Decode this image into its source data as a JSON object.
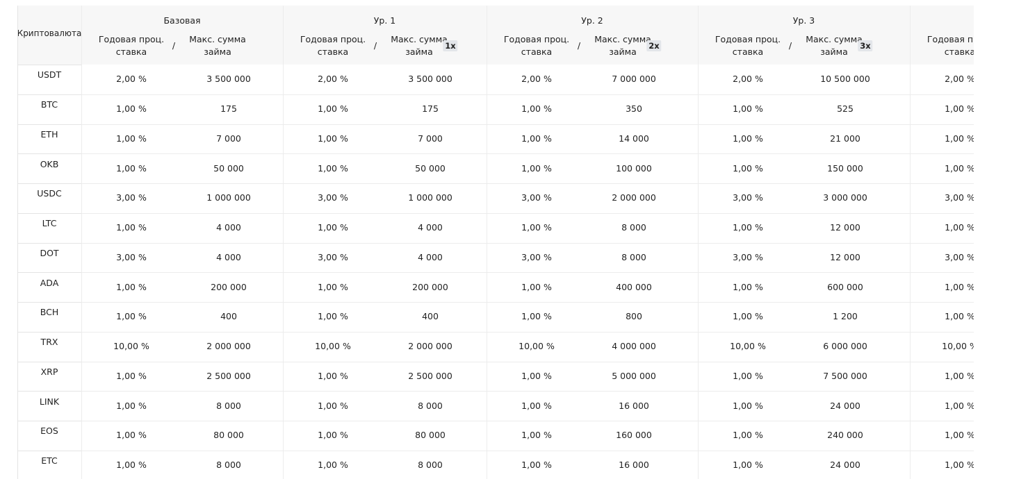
{
  "table": {
    "corner": "Криптовалюта",
    "groups": [
      {
        "name": "Базовая",
        "rate_header": [
          "Годовая проц.",
          "ставка"
        ],
        "separator": "/",
        "amount_header": [
          "Макс. сумма",
          "займа"
        ]
      },
      {
        "name": "Ур. 1",
        "rate_header": [
          "Годовая проц.",
          "ставка"
        ],
        "separator": "/",
        "amount_header": [
          "Макс. сумма",
          "займа"
        ],
        "multiplier": "1x"
      },
      {
        "name": "Ур. 2",
        "rate_header": [
          "Годовая проц.",
          "ставка"
        ],
        "separator": "/",
        "amount_header": [
          "Макс. сумма",
          "займа"
        ],
        "multiplier": "2x"
      },
      {
        "name": "Ур. 3",
        "rate_header": [
          "Годовая проц.",
          "ставка"
        ],
        "separator": "/",
        "amount_header": [
          "Макс. сумма",
          "займа"
        ],
        "multiplier": "3x"
      },
      {
        "rate_header": [
          "Годовая проц.",
          "ставка"
        ]
      }
    ],
    "rows": [
      {
        "currency": "USDT",
        "cells": [
          "2,00 %",
          "3 500 000",
          "2,00 %",
          "3 500 000",
          "2,00 %",
          "7 000 000",
          "2,00 %",
          "10 500 000",
          "2,00 %"
        ]
      },
      {
        "currency": "BTC",
        "cells": [
          "1,00 %",
          "175",
          "1,00 %",
          "175",
          "1,00 %",
          "350",
          "1,00 %",
          "525",
          "1,00 %"
        ]
      },
      {
        "currency": "ETH",
        "cells": [
          "1,00 %",
          "7 000",
          "1,00 %",
          "7 000",
          "1,00 %",
          "14 000",
          "1,00 %",
          "21 000",
          "1,00 %"
        ]
      },
      {
        "currency": "OKB",
        "cells": [
          "1,00 %",
          "50 000",
          "1,00 %",
          "50 000",
          "1,00 %",
          "100 000",
          "1,00 %",
          "150 000",
          "1,00 %"
        ]
      },
      {
        "currency": "USDC",
        "cells": [
          "3,00 %",
          "1 000 000",
          "3,00 %",
          "1 000 000",
          "3,00 %",
          "2 000 000",
          "3,00 %",
          "3 000 000",
          "3,00 %"
        ]
      },
      {
        "currency": "LTC",
        "cells": [
          "1,00 %",
          "4 000",
          "1,00 %",
          "4 000",
          "1,00 %",
          "8 000",
          "1,00 %",
          "12 000",
          "1,00 %"
        ]
      },
      {
        "currency": "DOT",
        "cells": [
          "3,00 %",
          "4 000",
          "3,00 %",
          "4 000",
          "3,00 %",
          "8 000",
          "3,00 %",
          "12 000",
          "3,00 %"
        ]
      },
      {
        "currency": "ADA",
        "cells": [
          "1,00 %",
          "200 000",
          "1,00 %",
          "200 000",
          "1,00 %",
          "400 000",
          "1,00 %",
          "600 000",
          "1,00 %"
        ]
      },
      {
        "currency": "BCH",
        "cells": [
          "1,00 %",
          "400",
          "1,00 %",
          "400",
          "1,00 %",
          "800",
          "1,00 %",
          "1 200",
          "1,00 %"
        ]
      },
      {
        "currency": "TRX",
        "cells": [
          "10,00 %",
          "2 000 000",
          "10,00 %",
          "2 000 000",
          "10,00 %",
          "4 000 000",
          "10,00 %",
          "6 000 000",
          "10,00 %"
        ]
      },
      {
        "currency": "XRP",
        "cells": [
          "1,00 %",
          "2 500 000",
          "1,00 %",
          "2 500 000",
          "1,00 %",
          "5 000 000",
          "1,00 %",
          "7 500 000",
          "1,00 %"
        ]
      },
      {
        "currency": "LINK",
        "cells": [
          "1,00 %",
          "8 000",
          "1,00 %",
          "8 000",
          "1,00 %",
          "16 000",
          "1,00 %",
          "24 000",
          "1,00 %"
        ]
      },
      {
        "currency": "EOS",
        "cells": [
          "1,00 %",
          "80 000",
          "1,00 %",
          "80 000",
          "1,00 %",
          "160 000",
          "1,00 %",
          "240 000",
          "1,00 %"
        ]
      },
      {
        "currency": "ETC",
        "cells": [
          "1,00 %",
          "8 000",
          "1,00 %",
          "8 000",
          "1,00 %",
          "16 000",
          "1,00 %",
          "24 000",
          "1,00 %"
        ]
      }
    ]
  }
}
